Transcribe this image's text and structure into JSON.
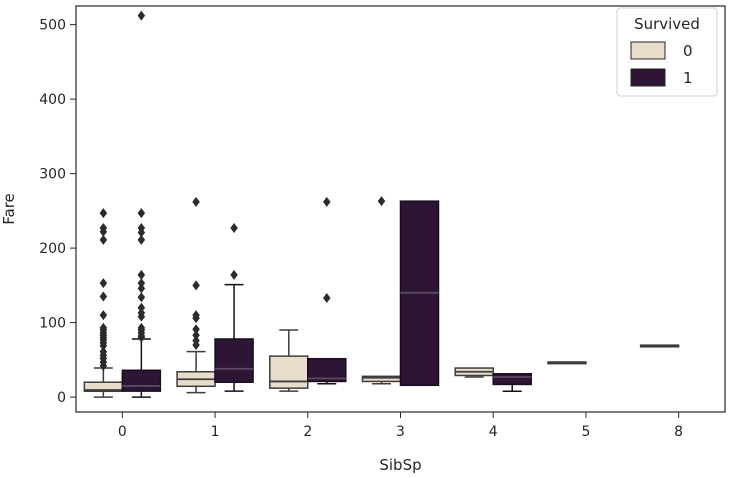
{
  "chart_data": {
    "type": "box",
    "xlabel": "SibSp",
    "ylabel": "Fare",
    "ylim": [
      -20,
      525
    ],
    "yticks": [
      0,
      100,
      200,
      300,
      400,
      500
    ],
    "categories": [
      "0",
      "1",
      "2",
      "3",
      "4",
      "5",
      "8"
    ],
    "legend": {
      "title": "Survived",
      "placement": "top-right",
      "entries": [
        {
          "label": "0",
          "color": "#e8dccb"
        },
        {
          "label": "1",
          "color": "#2d1634"
        }
      ]
    },
    "series": [
      {
        "name": "0",
        "color": "#e8dccb",
        "boxes": [
          {
            "category": "0",
            "whislo": 0,
            "q1": 7.8,
            "med": 9.5,
            "q3": 20,
            "whishi": 39,
            "fliers": [
              42,
              47,
              52,
              56,
              61,
              69,
              73,
              77,
              80,
              83,
              86,
              90,
              93,
              110,
              135,
              153,
              211,
              222,
              227,
              247
            ]
          },
          {
            "category": "1",
            "whislo": 6,
            "q1": 14.5,
            "med": 24,
            "q3": 34,
            "whishi": 61,
            "fliers": [
              70,
              76,
              83,
              91,
              106,
              110,
              150,
              262
            ]
          },
          {
            "category": "2",
            "whislo": 8,
            "q1": 12,
            "med": 21,
            "q3": 55,
            "whishi": 90,
            "fliers": []
          },
          {
            "category": "3",
            "whislo": 18,
            "q1": 21,
            "med": 26,
            "q3": 27.9,
            "whishi": 27.9,
            "fliers": [
              263
            ]
          },
          {
            "category": "4",
            "whislo": 27,
            "q1": 29,
            "med": 34,
            "q3": 39,
            "whishi": 39,
            "fliers": []
          },
          {
            "category": "5",
            "whislo": 46.9,
            "q1": 46.9,
            "med": 46.9,
            "q3": 46.9,
            "whishi": 46.9,
            "fliers": []
          },
          {
            "category": "8",
            "whislo": 69.55,
            "q1": 69.55,
            "med": 69.55,
            "q3": 69.55,
            "whishi": 69.55,
            "fliers": []
          }
        ]
      },
      {
        "name": "1",
        "color": "#2d1634",
        "boxes": [
          {
            "category": "0",
            "whislo": 0,
            "q1": 8,
            "med": 15,
            "q3": 36,
            "whishi": 78,
            "fliers": [
              80,
              82,
              86,
              90,
              93,
              108,
              113,
              120,
              134,
              146,
              153,
              164,
              211,
              221,
              227,
              247,
              512
            ]
          },
          {
            "category": "1",
            "whislo": 8,
            "q1": 20,
            "med": 38,
            "q3": 78,
            "whishi": 151,
            "fliers": [
              164,
              227
            ]
          },
          {
            "category": "2",
            "whislo": 18,
            "q1": 21,
            "med": 25,
            "q3": 51.5,
            "whishi": 51.5,
            "fliers": [
              133,
              262
            ]
          },
          {
            "category": "3",
            "whislo": 15.85,
            "q1": 15.85,
            "med": 140,
            "q3": 263,
            "whishi": 263,
            "fliers": []
          },
          {
            "category": "4",
            "whislo": 7.9,
            "q1": 17,
            "med": 27,
            "q3": 31.3,
            "whishi": 31.3,
            "fliers": []
          }
        ]
      }
    ]
  }
}
